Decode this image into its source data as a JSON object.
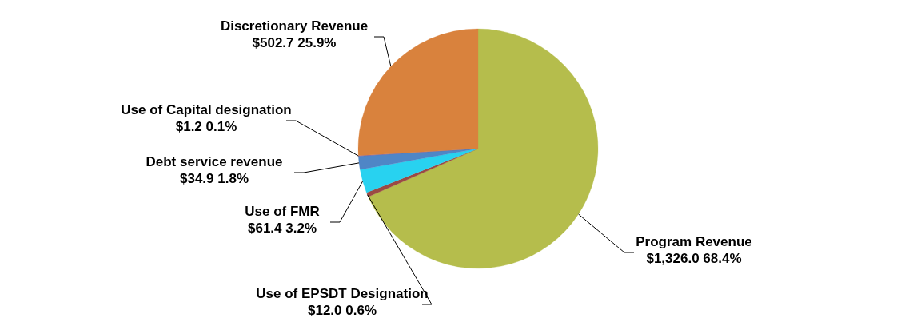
{
  "chart_data": {
    "type": "pie",
    "categories": [
      "Program Revenue",
      "Use of EPSDT Designation",
      "Use of FMR",
      "Debt service revenue",
      "Use of Capital designation",
      "Discretionary Revenue"
    ],
    "values": [
      1326.0,
      12.0,
      61.4,
      34.9,
      1.2,
      502.7
    ],
    "value_labels": [
      "$1,326.0  68.4%",
      "$12.0  0.6%",
      "$61.4  3.2%",
      "$34.9  1.8%",
      "$1.2  0.1%",
      "$502.7  25.9%"
    ],
    "colors": [
      "#b5bd4c",
      "#9b4a44",
      "#28d2f0",
      "#4f86c6",
      "#6a5aa8",
      "#d9823d"
    ]
  }
}
